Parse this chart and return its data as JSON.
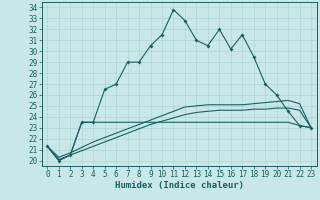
{
  "xlabel": "Humidex (Indice chaleur)",
  "bg_color": "#c8e8e8",
  "grid_color": "#b0d4d4",
  "line_color": "#1a6060",
  "xlim": [
    -0.5,
    23.5
  ],
  "ylim": [
    19.5,
    34.5
  ],
  "yticks": [
    20,
    21,
    22,
    23,
    24,
    25,
    26,
    27,
    28,
    29,
    30,
    31,
    32,
    33,
    34
  ],
  "xticks": [
    0,
    1,
    2,
    3,
    4,
    5,
    6,
    7,
    8,
    9,
    10,
    11,
    12,
    13,
    14,
    15,
    16,
    17,
    18,
    19,
    20,
    21,
    22,
    23
  ],
  "series1": [
    21.3,
    20.0,
    20.5,
    23.5,
    23.5,
    26.5,
    27.0,
    29.0,
    29.0,
    30.5,
    31.5,
    33.8,
    32.8,
    31.0,
    30.5,
    32.0,
    30.2,
    31.5,
    29.5,
    27.0,
    26.0,
    24.5,
    23.2,
    23.0
  ],
  "series2": [
    21.3,
    20.0,
    20.5,
    23.5,
    23.5,
    23.5,
    23.5,
    23.5,
    23.5,
    23.5,
    23.5,
    23.5,
    23.5,
    23.5,
    23.5,
    23.5,
    23.5,
    23.5,
    23.5,
    23.5,
    23.5,
    23.5,
    23.2,
    23.0
  ],
  "series3": [
    21.3,
    20.3,
    20.7,
    21.2,
    21.7,
    22.1,
    22.5,
    22.9,
    23.3,
    23.7,
    24.1,
    24.5,
    24.9,
    25.0,
    25.1,
    25.1,
    25.1,
    25.1,
    25.2,
    25.3,
    25.4,
    25.5,
    25.2,
    23.0
  ],
  "series4": [
    21.3,
    20.1,
    20.5,
    20.9,
    21.3,
    21.7,
    22.1,
    22.5,
    22.9,
    23.3,
    23.6,
    23.9,
    24.2,
    24.4,
    24.5,
    24.6,
    24.6,
    24.6,
    24.7,
    24.7,
    24.8,
    24.8,
    24.6,
    23.0
  ],
  "tick_fontsize": 5.5,
  "xlabel_fontsize": 6.5
}
